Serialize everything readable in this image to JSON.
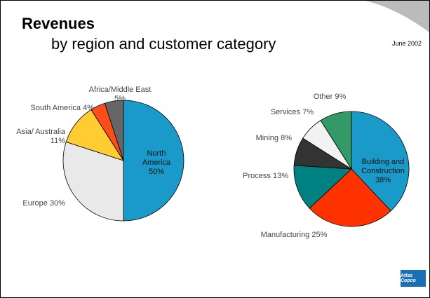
{
  "header": {
    "title": "Revenues",
    "subtitle": "by region and customer category",
    "date": "June 2002",
    "logo": "Atlas Copco"
  },
  "chart_data": [
    {
      "type": "pie",
      "categories": [
        "North America",
        "Europe",
        "Asia/ Australia",
        "South America",
        "Africa/Middle East"
      ],
      "values": [
        50,
        30,
        11,
        4,
        5
      ],
      "value_labels": [
        "50%",
        "30%",
        "11%",
        "4%",
        "5%"
      ],
      "colors": [
        "#1a9ac9",
        "#e9e9e9",
        "#ffcc33",
        "#ff4d1a",
        "#666666"
      ]
    },
    {
      "type": "pie",
      "categories": [
        "Building and Construction",
        "Manufacturing",
        "Process",
        "Mining",
        "Services",
        "Other"
      ],
      "values": [
        38,
        25,
        13,
        8,
        7,
        9
      ],
      "value_labels": [
        "38%",
        "25%",
        "13%",
        "8%",
        "7%",
        "9%"
      ],
      "colors": [
        "#1a9ac9",
        "#ff3300",
        "#008080",
        "#333333",
        "#f2f2f2",
        "#339966"
      ]
    }
  ]
}
